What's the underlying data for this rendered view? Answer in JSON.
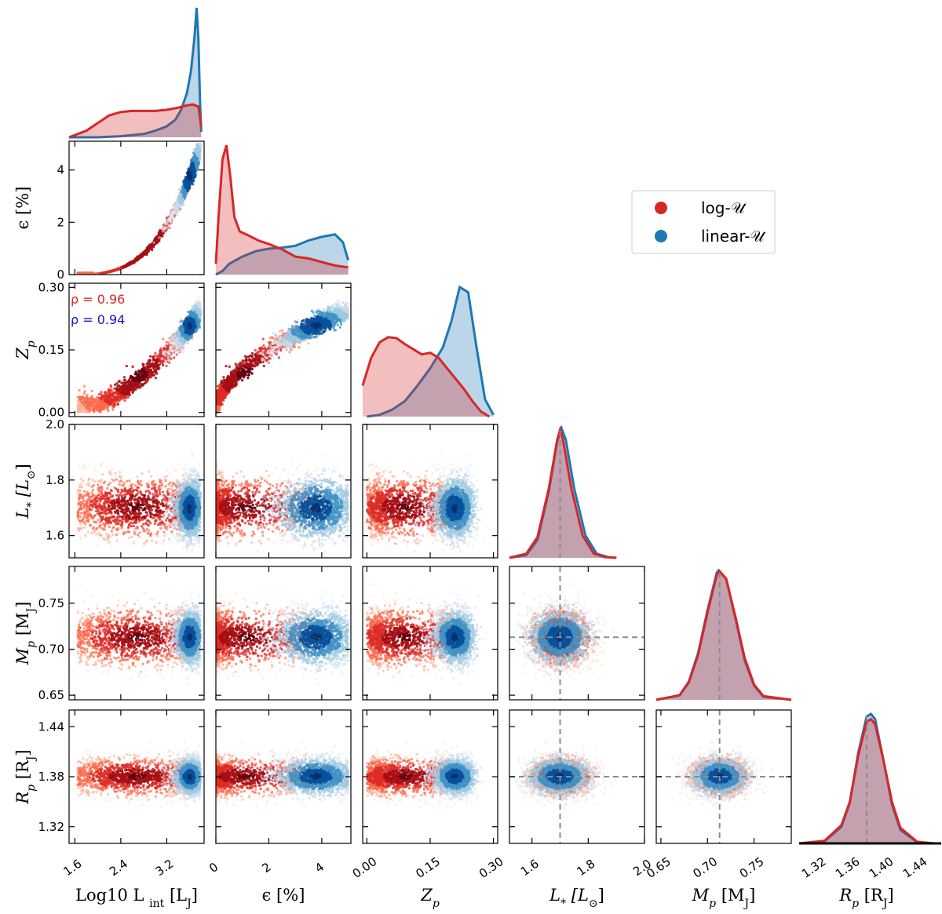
{
  "chart_data": {
    "type": "corner",
    "title": "",
    "parameters": [
      {
        "key": "logL",
        "label": "Log10 Lint [LJ]",
        "range": [
          1.5,
          3.85
        ],
        "ticks": [
          1.6,
          2.4,
          3.2
        ],
        "tick_labels": [
          "1.6",
          "2.4",
          "3.2"
        ]
      },
      {
        "key": "eps",
        "label": "ε [%]",
        "range": [
          0.0,
          5.1
        ],
        "ticks": [
          0,
          2,
          4
        ],
        "tick_labels": [
          "0",
          "2",
          "4"
        ]
      },
      {
        "key": "Zp",
        "label": "Zp",
        "range": [
          -0.01,
          0.31
        ],
        "ticks": [
          0.0,
          0.15,
          0.3
        ],
        "tick_labels": [
          "0.00",
          "0.15",
          "0.30"
        ]
      },
      {
        "key": "Lstar",
        "label": "L* [L☉]",
        "range": [
          1.52,
          2.0
        ],
        "ticks": [
          1.6,
          1.8,
          2.0
        ],
        "tick_labels": [
          "1.6",
          "1.8",
          "2.0"
        ]
      },
      {
        "key": "Mp",
        "label": "Mp [MJ]",
        "range": [
          0.645,
          0.79
        ],
        "ticks": [
          0.65,
          0.7,
          0.75
        ],
        "tick_labels": [
          "0.65",
          "0.70",
          "0.75"
        ]
      },
      {
        "key": "Rp",
        "label": "Rp [RJ]",
        "range": [
          1.3,
          1.46
        ],
        "ticks": [
          1.32,
          1.38,
          1.44
        ],
        "tick_labels": [
          "1.32",
          "1.38",
          "1.44"
        ]
      }
    ],
    "bottom_tick_labels": {
      "logL": [
        "1.6",
        "2.4",
        "3.2"
      ],
      "eps": [
        "0",
        "2",
        "4"
      ],
      "Zp": [
        "0.00",
        "0.15",
        "0.30"
      ],
      "Lstar": [
        "1.6",
        "1.8",
        "2.0"
      ],
      "Mp": [
        "0.65",
        "0.70",
        "0.75"
      ],
      "Rp": [
        "1.32",
        "1.36",
        "1.40",
        "1.44"
      ]
    },
    "bottom_tick_values": {
      "Rp": [
        1.32,
        1.36,
        1.4,
        1.44
      ]
    },
    "reference_values": {
      "Lstar": 1.7,
      "Mp": 0.713,
      "Rp": 1.38
    },
    "series": [
      {
        "name": "log-U",
        "color": "#d62728",
        "scatter_colormap": "Reds",
        "marginals": {
          "logL": {
            "x": [
              1.5,
              1.6,
              1.8,
              2.0,
              2.2,
              2.4,
              2.6,
              2.8,
              3.0,
              3.2,
              3.4,
              3.55,
              3.65,
              3.75,
              3.8
            ],
            "y": [
              0.0,
              0.02,
              0.06,
              0.13,
              0.2,
              0.23,
              0.24,
              0.24,
              0.24,
              0.25,
              0.27,
              0.29,
              0.3,
              0.28,
              0.1
            ]
          },
          "eps": {
            "x": [
              0.0,
              0.1,
              0.25,
              0.4,
              0.55,
              0.7,
              0.9,
              1.2,
              1.6,
              2.0,
              2.5,
              3.0,
              3.5,
              4.0,
              4.5,
              5.0
            ],
            "y": [
              0.3,
              1.6,
              3.2,
              3.6,
              2.7,
              1.6,
              1.2,
              1.1,
              0.95,
              0.85,
              0.7,
              0.5,
              0.45,
              0.35,
              0.25,
              0.2
            ]
          },
          "Zp": {
            "x": [
              -0.01,
              0.01,
              0.03,
              0.05,
              0.07,
              0.09,
              0.11,
              0.13,
              0.15,
              0.17,
              0.19,
              0.21,
              0.23,
              0.25,
              0.27,
              0.29
            ],
            "y": [
              1.8,
              3.4,
              4.3,
              4.6,
              4.55,
              4.2,
              3.9,
              3.6,
              3.7,
              3.4,
              2.8,
              2.2,
              1.6,
              0.9,
              0.3,
              0.0
            ]
          },
          "Lstar": {
            "x": [
              1.52,
              1.58,
              1.62,
              1.66,
              1.69,
              1.7,
              1.71,
              1.74,
              1.78,
              1.82,
              1.86,
              1.9
            ],
            "y": [
              0.0,
              0.3,
              1.5,
              5.0,
              8.5,
              9.2,
              8.5,
              5.0,
              1.6,
              0.3,
              0.05,
              0.0
            ]
          },
          "Mp": {
            "x": [
              0.645,
              0.67,
              0.68,
              0.69,
              0.7,
              0.71,
              0.713,
              0.72,
              0.73,
              0.74,
              0.75,
              0.76,
              0.79
            ],
            "y": [
              0.0,
              0.6,
              2.3,
              6.0,
              11.5,
              16.5,
              17.0,
              16.0,
              11.0,
              5.5,
              2.0,
              0.5,
              0.0
            ]
          },
          "Rp": {
            "x": [
              1.3,
              1.33,
              1.35,
              1.36,
              1.37,
              1.38,
              1.385,
              1.39,
              1.4,
              1.41,
              1.42,
              1.44,
              1.46
            ],
            "y": [
              0.0,
              0.5,
              3.5,
              8.0,
              17.0,
              23.5,
              24.0,
              23.0,
              16.0,
              8.0,
              3.0,
              0.3,
              0.0
            ]
          }
        },
        "correlation": {
          "pair": "logL-Zp",
          "text": "ρ = 0.96",
          "value": 0.96
        }
      },
      {
        "name": "linear-U",
        "color": "#1f77b4",
        "scatter_colormap": "Blues",
        "marginals": {
          "logL": {
            "x": [
              1.5,
              2.0,
              2.4,
              2.8,
              3.0,
              3.2,
              3.35,
              3.45,
              3.55,
              3.62,
              3.68,
              3.72,
              3.75,
              3.78,
              3.8
            ],
            "y": [
              0.0,
              0.0,
              0.01,
              0.03,
              0.06,
              0.1,
              0.16,
              0.25,
              0.4,
              0.6,
              0.9,
              1.18,
              0.9,
              0.3,
              0.05
            ]
          },
          "eps": {
            "x": [
              0.0,
              0.25,
              0.5,
              1.0,
              1.5,
              2.0,
              2.5,
              3.0,
              3.5,
              4.0,
              4.5,
              4.8,
              5.0
            ],
            "y": [
              0.0,
              0.1,
              0.3,
              0.5,
              0.65,
              0.72,
              0.75,
              0.8,
              0.95,
              1.05,
              1.12,
              0.9,
              0.4
            ]
          },
          "Zp": {
            "x": [
              0.0,
              0.03,
              0.06,
              0.09,
              0.12,
              0.15,
              0.18,
              0.2,
              0.22,
              0.24,
              0.26,
              0.28,
              0.3
            ],
            "y": [
              0.0,
              0.1,
              0.4,
              0.9,
              1.8,
              2.8,
              4.0,
              5.5,
              7.5,
              7.2,
              4.0,
              1.0,
              0.1
            ]
          },
          "Lstar": {
            "x": [
              1.52,
              1.58,
              1.62,
              1.66,
              1.69,
              1.705,
              1.72,
              1.75,
              1.79,
              1.83,
              1.87,
              1.9
            ],
            "y": [
              0.0,
              0.2,
              1.3,
              4.8,
              8.4,
              9.3,
              8.5,
              5.0,
              1.6,
              0.3,
              0.05,
              0.0
            ]
          },
          "Mp": {
            "x": [
              0.645,
              0.67,
              0.68,
              0.69,
              0.7,
              0.71,
              0.712,
              0.72,
              0.73,
              0.74,
              0.75,
              0.76,
              0.79
            ],
            "y": [
              0.0,
              0.6,
              2.4,
              6.2,
              11.8,
              16.8,
              17.1,
              16.0,
              10.8,
              5.2,
              1.9,
              0.4,
              0.0
            ]
          },
          "Rp": {
            "x": [
              1.3,
              1.33,
              1.35,
              1.36,
              1.37,
              1.38,
              1.385,
              1.39,
              1.4,
              1.41,
              1.42,
              1.44,
              1.46
            ],
            "y": [
              0.0,
              0.4,
              3.2,
              7.8,
              17.5,
              24.5,
              25.0,
              24.0,
              16.0,
              7.5,
              2.6,
              0.2,
              0.0
            ]
          }
        },
        "correlation": {
          "pair": "logL-Zp",
          "text": "ρ = 0.94",
          "value": 0.94
        }
      }
    ],
    "legend": {
      "position": "upper-right",
      "entries": [
        "log-𝒰",
        "linear-𝒰"
      ]
    },
    "grid": false
  },
  "axis_labels": {
    "x": [
      "Log₁₀ L",
      "ε [%]",
      "Z",
      "L",
      "M",
      "R"
    ],
    "y": [
      "ε [%]",
      "Z",
      "L",
      "M",
      "R"
    ]
  },
  "label_parts": {
    "logL_main": "Log10 L",
    "logL_sub": "int",
    "logL_unit": "[L",
    "logL_unit_sub": "J",
    "logL_close": "]",
    "eps": "ϵ [%]",
    "Zp_main": "Z",
    "Zp_sub": "p",
    "Lstar_main": "L",
    "Lstar_sub": "*",
    "Lstar_unit": "[L",
    "Lstar_unit_sub": "⊙",
    "Lstar_close": "]",
    "Mp_main": "M",
    "Mp_sub": "p",
    "Mp_unit": "[M",
    "Mp_unit_sub": "J",
    "Mp_close": "]",
    "Rp_main": "R",
    "Rp_sub": "p",
    "Rp_unit": "[R",
    "Rp_unit_sub": "J",
    "Rp_close": "]"
  }
}
